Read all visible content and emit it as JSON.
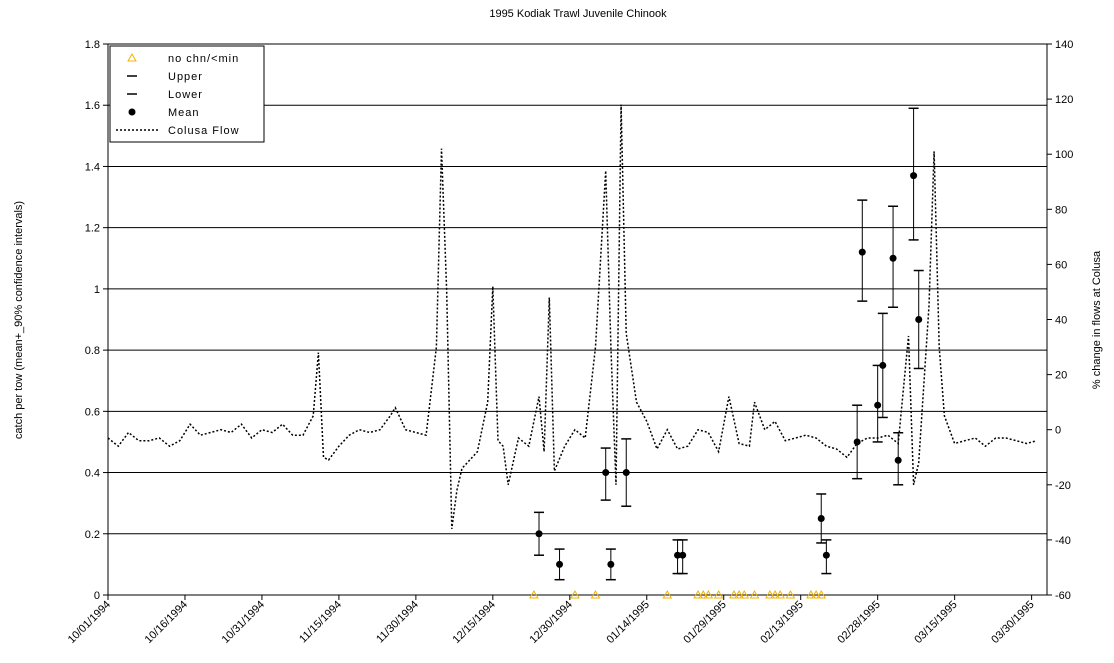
{
  "chart_data": {
    "type": "line",
    "title": "1995 Kodiak Trawl Juvenile Chinook",
    "y_label": "catch per tow (mean+_90% confidence intervals)",
    "y2_label": "% change in flows at Colusa",
    "xlim": [
      "1994-10-01",
      "1995-04-02"
    ],
    "xticks": [
      {
        "value": "1994-10-01",
        "label": "10/01/1994"
      },
      {
        "value": "1994-10-16",
        "label": "10/16/1994"
      },
      {
        "value": "1994-10-31",
        "label": "10/31/1994"
      },
      {
        "value": "1994-11-15",
        "label": "11/15/1994"
      },
      {
        "value": "1994-11-30",
        "label": "11/30/1994"
      },
      {
        "value": "1994-12-15",
        "label": "12/15/1994"
      },
      {
        "value": "1994-12-30",
        "label": "12/30/1994"
      },
      {
        "value": "1995-01-14",
        "label": "01/14/1995"
      },
      {
        "value": "1995-01-29",
        "label": "01/29/1995"
      },
      {
        "value": "1995-02-13",
        "label": "02/13/1995"
      },
      {
        "value": "1995-02-28",
        "label": "02/28/1995"
      },
      {
        "value": "1995-03-15",
        "label": "03/15/1995"
      },
      {
        "value": "1995-03-30",
        "label": "03/30/1995"
      }
    ],
    "ylim": [
      0,
      1.8
    ],
    "yticks": [
      0,
      0.2,
      0.4,
      0.6,
      0.8,
      1,
      1.2,
      1.4,
      1.6,
      1.8
    ],
    "y2lim": [
      -60,
      140
    ],
    "y2ticks": [
      -60,
      -40,
      -20,
      0,
      20,
      40,
      60,
      80,
      100,
      120,
      140
    ],
    "grid": true,
    "legend": "top-left",
    "series": [
      {
        "name": "no chn/<min",
        "color": "#f0b400",
        "style": "triangle",
        "x": [
          "1994-12-23",
          "1994-12-31",
          "1995-01-04",
          "1995-01-18",
          "1995-01-24",
          "1995-01-25",
          "1995-01-26",
          "1995-01-28",
          "1995-01-31",
          "1995-02-01",
          "1995-02-02",
          "1995-02-04",
          "1995-02-07",
          "1995-02-08",
          "1995-02-09",
          "1995-02-11",
          "1995-02-15",
          "1995-02-16",
          "1995-02-17"
        ],
        "values": [
          0,
          0,
          0,
          0,
          0,
          0,
          0,
          0,
          0,
          0,
          0,
          0,
          0,
          0,
          0,
          0,
          0,
          0,
          0
        ]
      },
      {
        "name": "Upper",
        "color": "#000000",
        "style": "dash",
        "x": [
          "1994-12-24",
          "1994-12-28",
          "1995-01-06",
          "1995-01-07",
          "1995-01-10",
          "1995-01-20",
          "1995-01-21",
          "1995-02-17",
          "1995-02-18",
          "1995-02-24",
          "1995-02-25",
          "1995-02-28",
          "1995-03-01",
          "1995-03-03",
          "1995-03-04",
          "1995-03-07",
          "1995-03-08"
        ],
        "values": [
          0.27,
          0.15,
          0.48,
          0.15,
          0.51,
          0.18,
          0.18,
          0.33,
          0.18,
          0.62,
          1.29,
          0.75,
          0.92,
          1.27,
          0.53,
          1.59,
          1.06
        ]
      },
      {
        "name": "Lower",
        "color": "#000000",
        "style": "dash",
        "x": [
          "1994-12-24",
          "1994-12-28",
          "1995-01-06",
          "1995-01-07",
          "1995-01-10",
          "1995-01-20",
          "1995-01-21",
          "1995-02-17",
          "1995-02-18",
          "1995-02-24",
          "1995-02-25",
          "1995-02-28",
          "1995-03-01",
          "1995-03-03",
          "1995-03-04",
          "1995-03-07",
          "1995-03-08"
        ],
        "values": [
          0.13,
          0.05,
          0.31,
          0.05,
          0.29,
          0.07,
          0.07,
          0.17,
          0.07,
          0.38,
          0.96,
          0.5,
          0.58,
          0.94,
          0.36,
          1.16,
          0.74
        ]
      },
      {
        "name": "Mean",
        "color": "#000000",
        "style": "dot",
        "x": [
          "1994-12-24",
          "1994-12-28",
          "1995-01-06",
          "1995-01-07",
          "1995-01-10",
          "1995-01-20",
          "1995-01-21",
          "1995-02-17",
          "1995-02-18",
          "1995-02-24",
          "1995-02-25",
          "1995-02-28",
          "1995-03-01",
          "1995-03-03",
          "1995-03-04",
          "1995-03-07",
          "1995-03-08"
        ],
        "values": [
          0.2,
          0.1,
          0.4,
          0.1,
          0.4,
          0.13,
          0.13,
          0.25,
          0.13,
          0.5,
          1.12,
          0.62,
          0.75,
          1.1,
          0.44,
          1.37,
          0.9
        ]
      },
      {
        "name": "Colusa Flow",
        "color": "#000000",
        "style": "dotted-line",
        "axis": "y2",
        "x": [
          "1994-10-01",
          "1994-10-03",
          "1994-10-05",
          "1994-10-07",
          "1994-10-09",
          "1994-10-11",
          "1994-10-13",
          "1994-10-15",
          "1994-10-17",
          "1994-10-19",
          "1994-10-21",
          "1994-10-23",
          "1994-10-25",
          "1994-10-27",
          "1994-10-29",
          "1994-10-31",
          "1994-11-02",
          "1994-11-04",
          "1994-11-06",
          "1994-11-08",
          "1994-11-10",
          "1994-11-11",
          "1994-11-12",
          "1994-11-13",
          "1994-11-15",
          "1994-11-17",
          "1994-11-19",
          "1994-11-21",
          "1994-11-23",
          "1994-11-25",
          "1994-11-26",
          "1994-11-28",
          "1994-11-30",
          "1994-12-02",
          "1994-12-04",
          "1994-12-05",
          "1994-12-06",
          "1994-12-07",
          "1994-12-08",
          "1994-12-09",
          "1994-12-10",
          "1994-12-12",
          "1994-12-14",
          "1994-12-15",
          "1994-12-16",
          "1994-12-17",
          "1994-12-18",
          "1994-12-20",
          "1994-12-22",
          "1994-12-24",
          "1994-12-25",
          "1994-12-26",
          "1994-12-27",
          "1994-12-29",
          "1994-12-31",
          "1995-01-02",
          "1995-01-04",
          "1995-01-06",
          "1995-01-07",
          "1995-01-08",
          "1995-01-09",
          "1995-01-10",
          "1995-01-12",
          "1995-01-14",
          "1995-01-16",
          "1995-01-18",
          "1995-01-20",
          "1995-01-22",
          "1995-01-24",
          "1995-01-26",
          "1995-01-28",
          "1995-01-30",
          "1995-02-01",
          "1995-02-03",
          "1995-02-04",
          "1995-02-06",
          "1995-02-08",
          "1995-02-10",
          "1995-02-12",
          "1995-02-14",
          "1995-02-16",
          "1995-02-18",
          "1995-02-20",
          "1995-02-22",
          "1995-02-24",
          "1995-02-26",
          "1995-02-28",
          "1995-03-02",
          "1995-03-04",
          "1995-03-06",
          "1995-03-07",
          "1995-03-08",
          "1995-03-10",
          "1995-03-11",
          "1995-03-12",
          "1995-03-13",
          "1995-03-15",
          "1995-03-17",
          "1995-03-19",
          "1995-03-21",
          "1995-03-23",
          "1995-03-25",
          "1995-03-27",
          "1995-03-29",
          "1995-03-31"
        ],
        "values": [
          -3,
          -6,
          -1,
          -4,
          -4,
          -3,
          -6,
          -4,
          2,
          -2,
          -1,
          0,
          -1,
          2,
          -3,
          0,
          -1,
          2,
          -2,
          -2,
          5,
          28,
          -10,
          -11,
          -6,
          -2,
          0,
          -1,
          0,
          5,
          8,
          0,
          -1,
          -2,
          30,
          102,
          50,
          -36,
          -22,
          -14,
          -12,
          -8,
          10,
          52,
          -4,
          -6,
          -20,
          -3,
          -6,
          12,
          -8,
          48,
          -15,
          -6,
          0,
          -3,
          30,
          94,
          30,
          -20,
          118,
          35,
          10,
          3,
          -7,
          0,
          -7,
          -6,
          0,
          -1,
          -8,
          12,
          -5,
          -6,
          10,
          0,
          3,
          -4,
          -3,
          -2,
          -3,
          -6,
          -7,
          -10,
          -5,
          -3,
          -3,
          -2,
          -5,
          34,
          -20,
          -12,
          45,
          101,
          30,
          5,
          -5,
          -4,
          -3,
          -6,
          -3,
          -3,
          -4,
          -5,
          -4
        ]
      }
    ]
  }
}
